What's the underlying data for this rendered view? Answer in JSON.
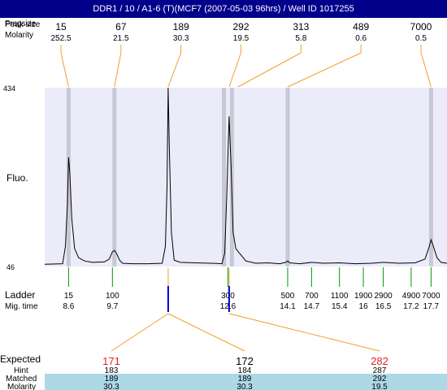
{
  "header": {
    "title": "DDR1 / 10 / A1-6 (T)(MCF7 (2007-05-03 96hrs) / Well ID 1017255"
  },
  "labels": {
    "fragsize_a": "Fragsize",
    "fragsize_b": "Peak size",
    "molarity": "Molarity",
    "fluo": "Fluo.",
    "ladder": "Ladder",
    "mig_time": "Mig. time",
    "expected": "Expected",
    "hint": "Hint",
    "matched": "Matched",
    "molarity_row": "Molarity"
  },
  "colors": {
    "titlebar": "#00008b",
    "plot_band": "#ebebfa",
    "marker_band": "#c8c8d4",
    "connector": "#f0a028",
    "ladder_tick": "#009a00",
    "highlight_row": "#add8e6",
    "expected_red": "#e52222",
    "blue_mark": "#0000cc"
  },
  "chart_data": {
    "type": "line",
    "ylim": [
      46,
      434
    ],
    "y_tick_labels": [
      "434",
      "46"
    ],
    "peaks": [
      {
        "size": "15",
        "molarity": "252.5",
        "mig_time": 8.6
      },
      {
        "size": "67",
        "molarity": "21.5",
        "mig_time": 9.75
      },
      {
        "size": "189",
        "molarity": "30.3",
        "mig_time": 11.1
      },
      {
        "size": "292",
        "molarity": "19.5",
        "mig_time": 12.63
      },
      {
        "size": "313",
        "molarity": "5.8",
        "mig_time": 12.85
      },
      {
        "size": "489",
        "molarity": "0.6",
        "mig_time": 14.1
      },
      {
        "size": "7000",
        "molarity": "0.5",
        "mig_time": 17.7
      }
    ],
    "ladder": [
      {
        "size": "15",
        "time": "8.6"
      },
      {
        "size": "100",
        "time": "9.7"
      },
      {
        "size": "300",
        "time": "12.6"
      },
      {
        "size": "500",
        "time": "14.1"
      },
      {
        "size": "700",
        "time": "14.7"
      },
      {
        "size": "1100",
        "time": "15.4"
      },
      {
        "size": "1900",
        "time": "16"
      },
      {
        "size": "2900",
        "time": "16.5"
      },
      {
        "size": "4900",
        "time": "17.2"
      },
      {
        "size": "7000",
        "time": "17.7"
      }
    ],
    "ladder_marker_times": [
      8.6,
      9.75,
      12.5,
      12.7,
      14.1,
      17.7
    ],
    "trace": [
      [
        8.0,
        51
      ],
      [
        8.45,
        52
      ],
      [
        8.52,
        90
      ],
      [
        8.57,
        180
      ],
      [
        8.6,
        283
      ],
      [
        8.63,
        250
      ],
      [
        8.68,
        150
      ],
      [
        8.75,
        85
      ],
      [
        8.85,
        65
      ],
      [
        9.0,
        58
      ],
      [
        9.2,
        55
      ],
      [
        9.5,
        56
      ],
      [
        9.62,
        62
      ],
      [
        9.7,
        78
      ],
      [
        9.75,
        81
      ],
      [
        9.8,
        75
      ],
      [
        9.88,
        60
      ],
      [
        9.95,
        53
      ],
      [
        10.2,
        52
      ],
      [
        10.6,
        52
      ],
      [
        10.95,
        53
      ],
      [
        11.03,
        90
      ],
      [
        11.07,
        220
      ],
      [
        11.1,
        434
      ],
      [
        11.13,
        300
      ],
      [
        11.18,
        120
      ],
      [
        11.25,
        60
      ],
      [
        11.4,
        55
      ],
      [
        11.8,
        54
      ],
      [
        12.2,
        53
      ],
      [
        12.45,
        52
      ],
      [
        12.52,
        75
      ],
      [
        12.57,
        200
      ],
      [
        12.63,
        372
      ],
      [
        12.68,
        260
      ],
      [
        12.73,
        120
      ],
      [
        12.8,
        85
      ],
      [
        12.85,
        79
      ],
      [
        12.92,
        72
      ],
      [
        13.05,
        58
      ],
      [
        13.3,
        53
      ],
      [
        13.6,
        54
      ],
      [
        13.9,
        52
      ],
      [
        14.05,
        55
      ],
      [
        14.1,
        58
      ],
      [
        14.15,
        54
      ],
      [
        14.4,
        52
      ],
      [
        14.7,
        55
      ],
      [
        15.0,
        53
      ],
      [
        15.4,
        54
      ],
      [
        15.8,
        52
      ],
      [
        16.2,
        53
      ],
      [
        16.5,
        55
      ],
      [
        16.9,
        53
      ],
      [
        17.3,
        54
      ],
      [
        17.55,
        62
      ],
      [
        17.65,
        88
      ],
      [
        17.7,
        104
      ],
      [
        17.75,
        92
      ],
      [
        17.85,
        65
      ],
      [
        17.95,
        55
      ],
      [
        18.1,
        53
      ]
    ],
    "expected": [
      {
        "target": "171",
        "hint": "183",
        "matched": "189",
        "molarity": "30.3",
        "red": true
      },
      {
        "target": "172",
        "hint": "184",
        "matched": "189",
        "molarity": "30.3",
        "red": false
      },
      {
        "target": "282",
        "hint": "287",
        "matched": "292",
        "molarity": "19.5",
        "red": true
      }
    ]
  }
}
